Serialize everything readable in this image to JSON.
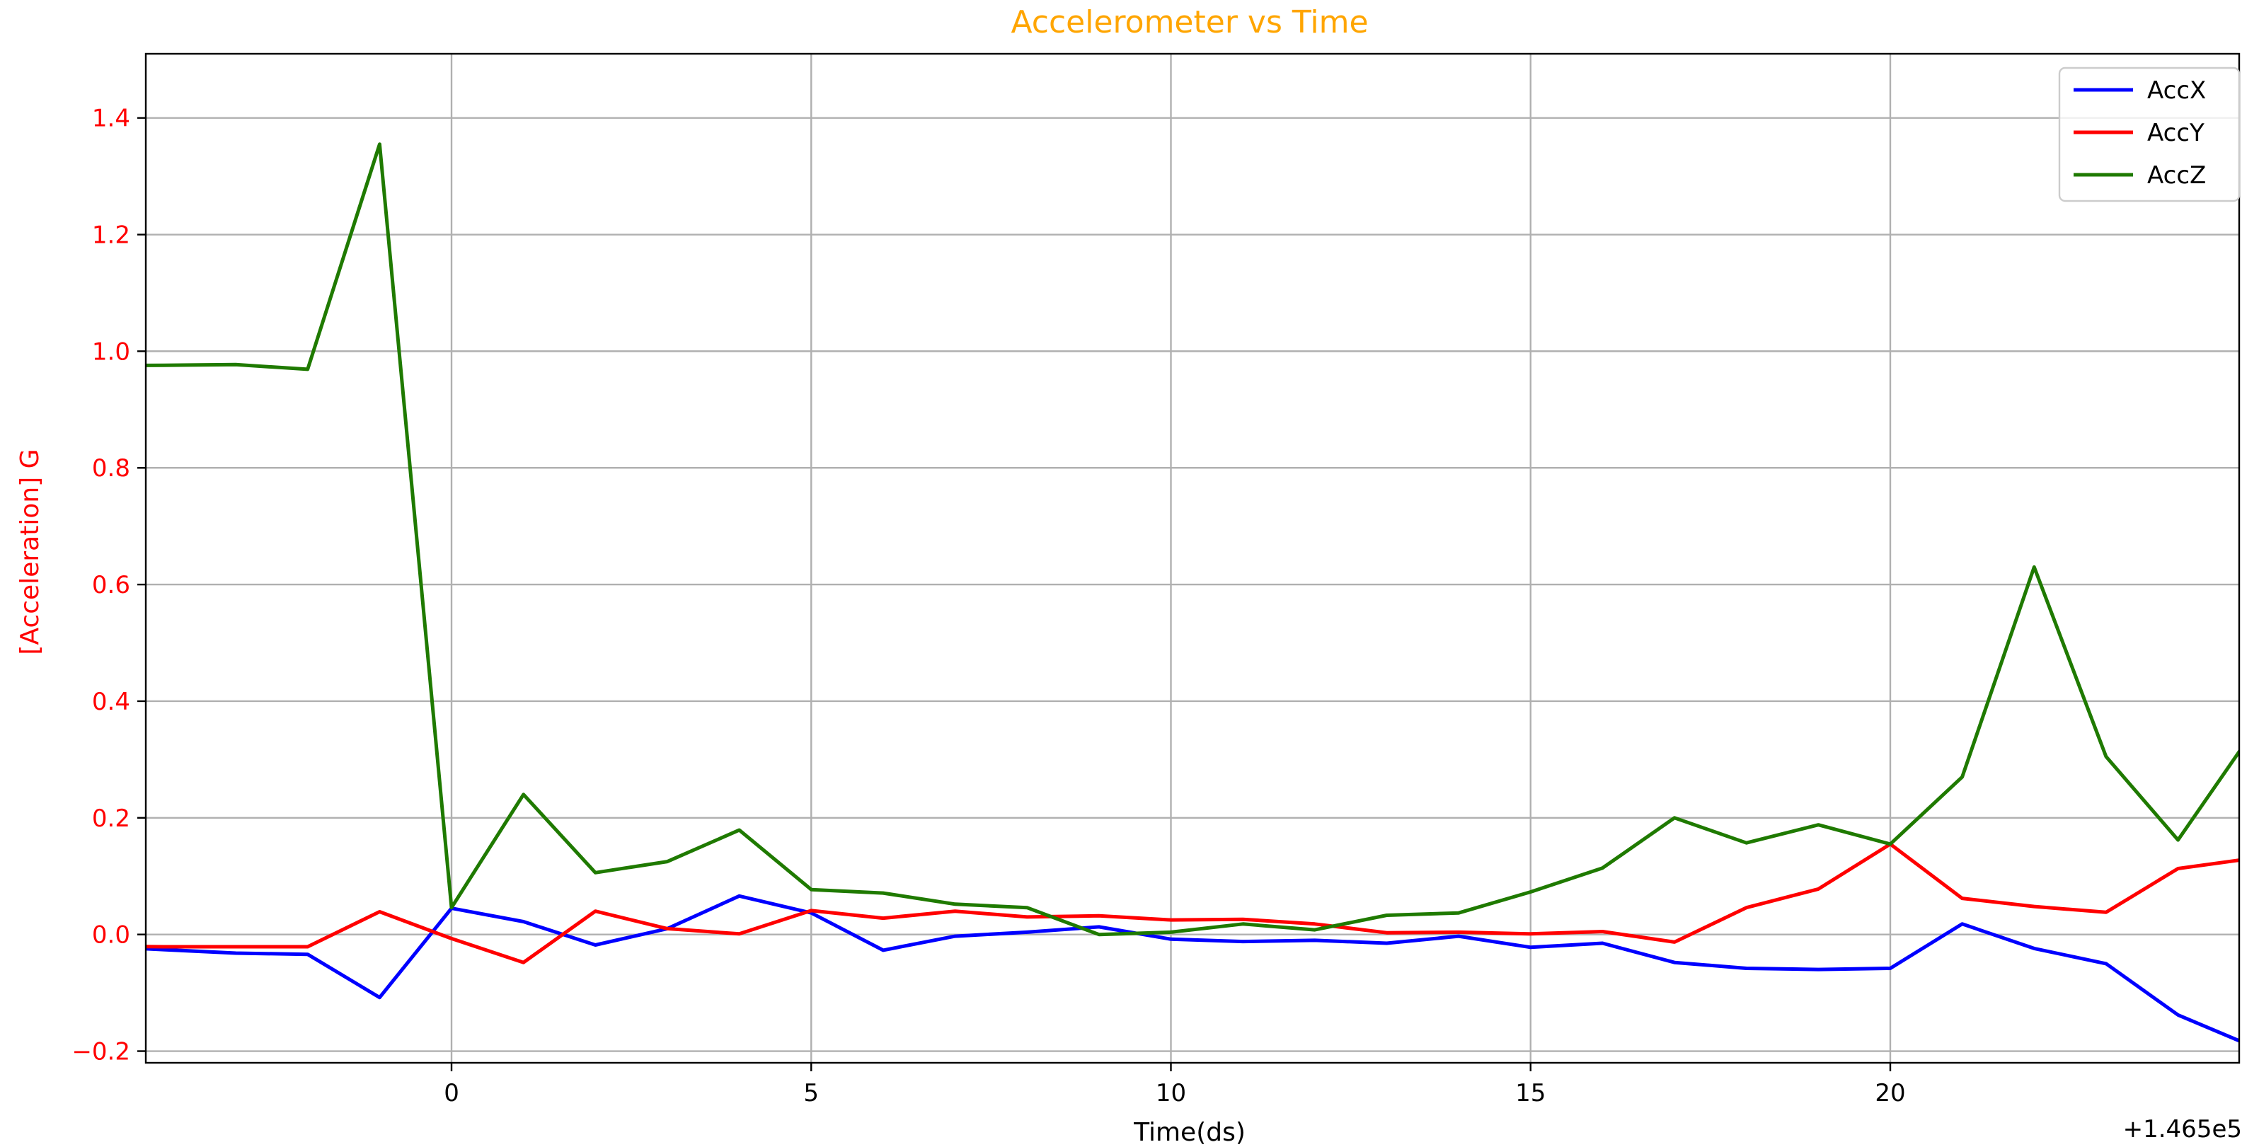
{
  "chart_data": {
    "type": "line",
    "title": "Accelerometer vs Time",
    "xlabel": "Time(ds)",
    "ylabel": "[Acceleration] G",
    "x_offset_label": "+1.465e5",
    "xlim": [
      -4.25,
      24.85
    ],
    "ylim": [
      -0.22,
      1.51
    ],
    "xticks": [
      0,
      5,
      10,
      15,
      20
    ],
    "yticks": [
      -0.2,
      0.0,
      0.2,
      0.4,
      0.6,
      0.8,
      1.0,
      1.2,
      1.4
    ],
    "ytick_labels": [
      "−0.2",
      "0.0",
      "0.2",
      "0.4",
      "0.6",
      "0.8",
      "1.0",
      "1.2",
      "1.4"
    ],
    "grid": true,
    "legend_position": "top-right",
    "x": [
      -5,
      -4,
      -3,
      -2,
      -1,
      0,
      1,
      2,
      3,
      4,
      5,
      6,
      7,
      8,
      9,
      10,
      11,
      12,
      13,
      14,
      15,
      16,
      17,
      18,
      19,
      20,
      21,
      22,
      23,
      24,
      25
    ],
    "series": [
      {
        "name": "AccX",
        "color": "#0000FF",
        "values": [
          -0.02,
          -0.026,
          -0.032,
          -0.034,
          -0.108,
          0.045,
          0.022,
          -0.018,
          0.01,
          0.066,
          0.037,
          -0.027,
          -0.003,
          0.004,
          0.013,
          -0.008,
          -0.012,
          -0.01,
          -0.015,
          -0.003,
          -0.022,
          -0.015,
          -0.048,
          -0.058,
          -0.06,
          -0.058,
          0.018,
          -0.024,
          -0.05,
          -0.138,
          -0.19
        ]
      },
      {
        "name": "AccY",
        "color": "#FF0000",
        "values": [
          -0.02,
          -0.021,
          -0.021,
          -0.021,
          0.039,
          -0.007,
          -0.048,
          0.04,
          0.01,
          0.001,
          0.041,
          0.028,
          0.04,
          0.03,
          0.032,
          0.025,
          0.026,
          0.018,
          0.003,
          0.004,
          0.001,
          0.005,
          -0.013,
          0.046,
          0.078,
          0.155,
          0.062,
          0.048,
          0.038,
          0.113,
          0.13
        ]
      },
      {
        "name": "AccZ",
        "color": "#1F7A00",
        "values": [
          0.975,
          0.976,
          0.977,
          0.969,
          1.355,
          0.046,
          0.24,
          0.106,
          0.125,
          0.179,
          0.077,
          0.071,
          0.052,
          0.046,
          0.0,
          0.004,
          0.018,
          0.008,
          0.033,
          0.037,
          0.073,
          0.114,
          0.2,
          0.157,
          0.188,
          0.155,
          0.27,
          0.63,
          0.305,
          0.162,
          0.34
        ]
      }
    ]
  }
}
